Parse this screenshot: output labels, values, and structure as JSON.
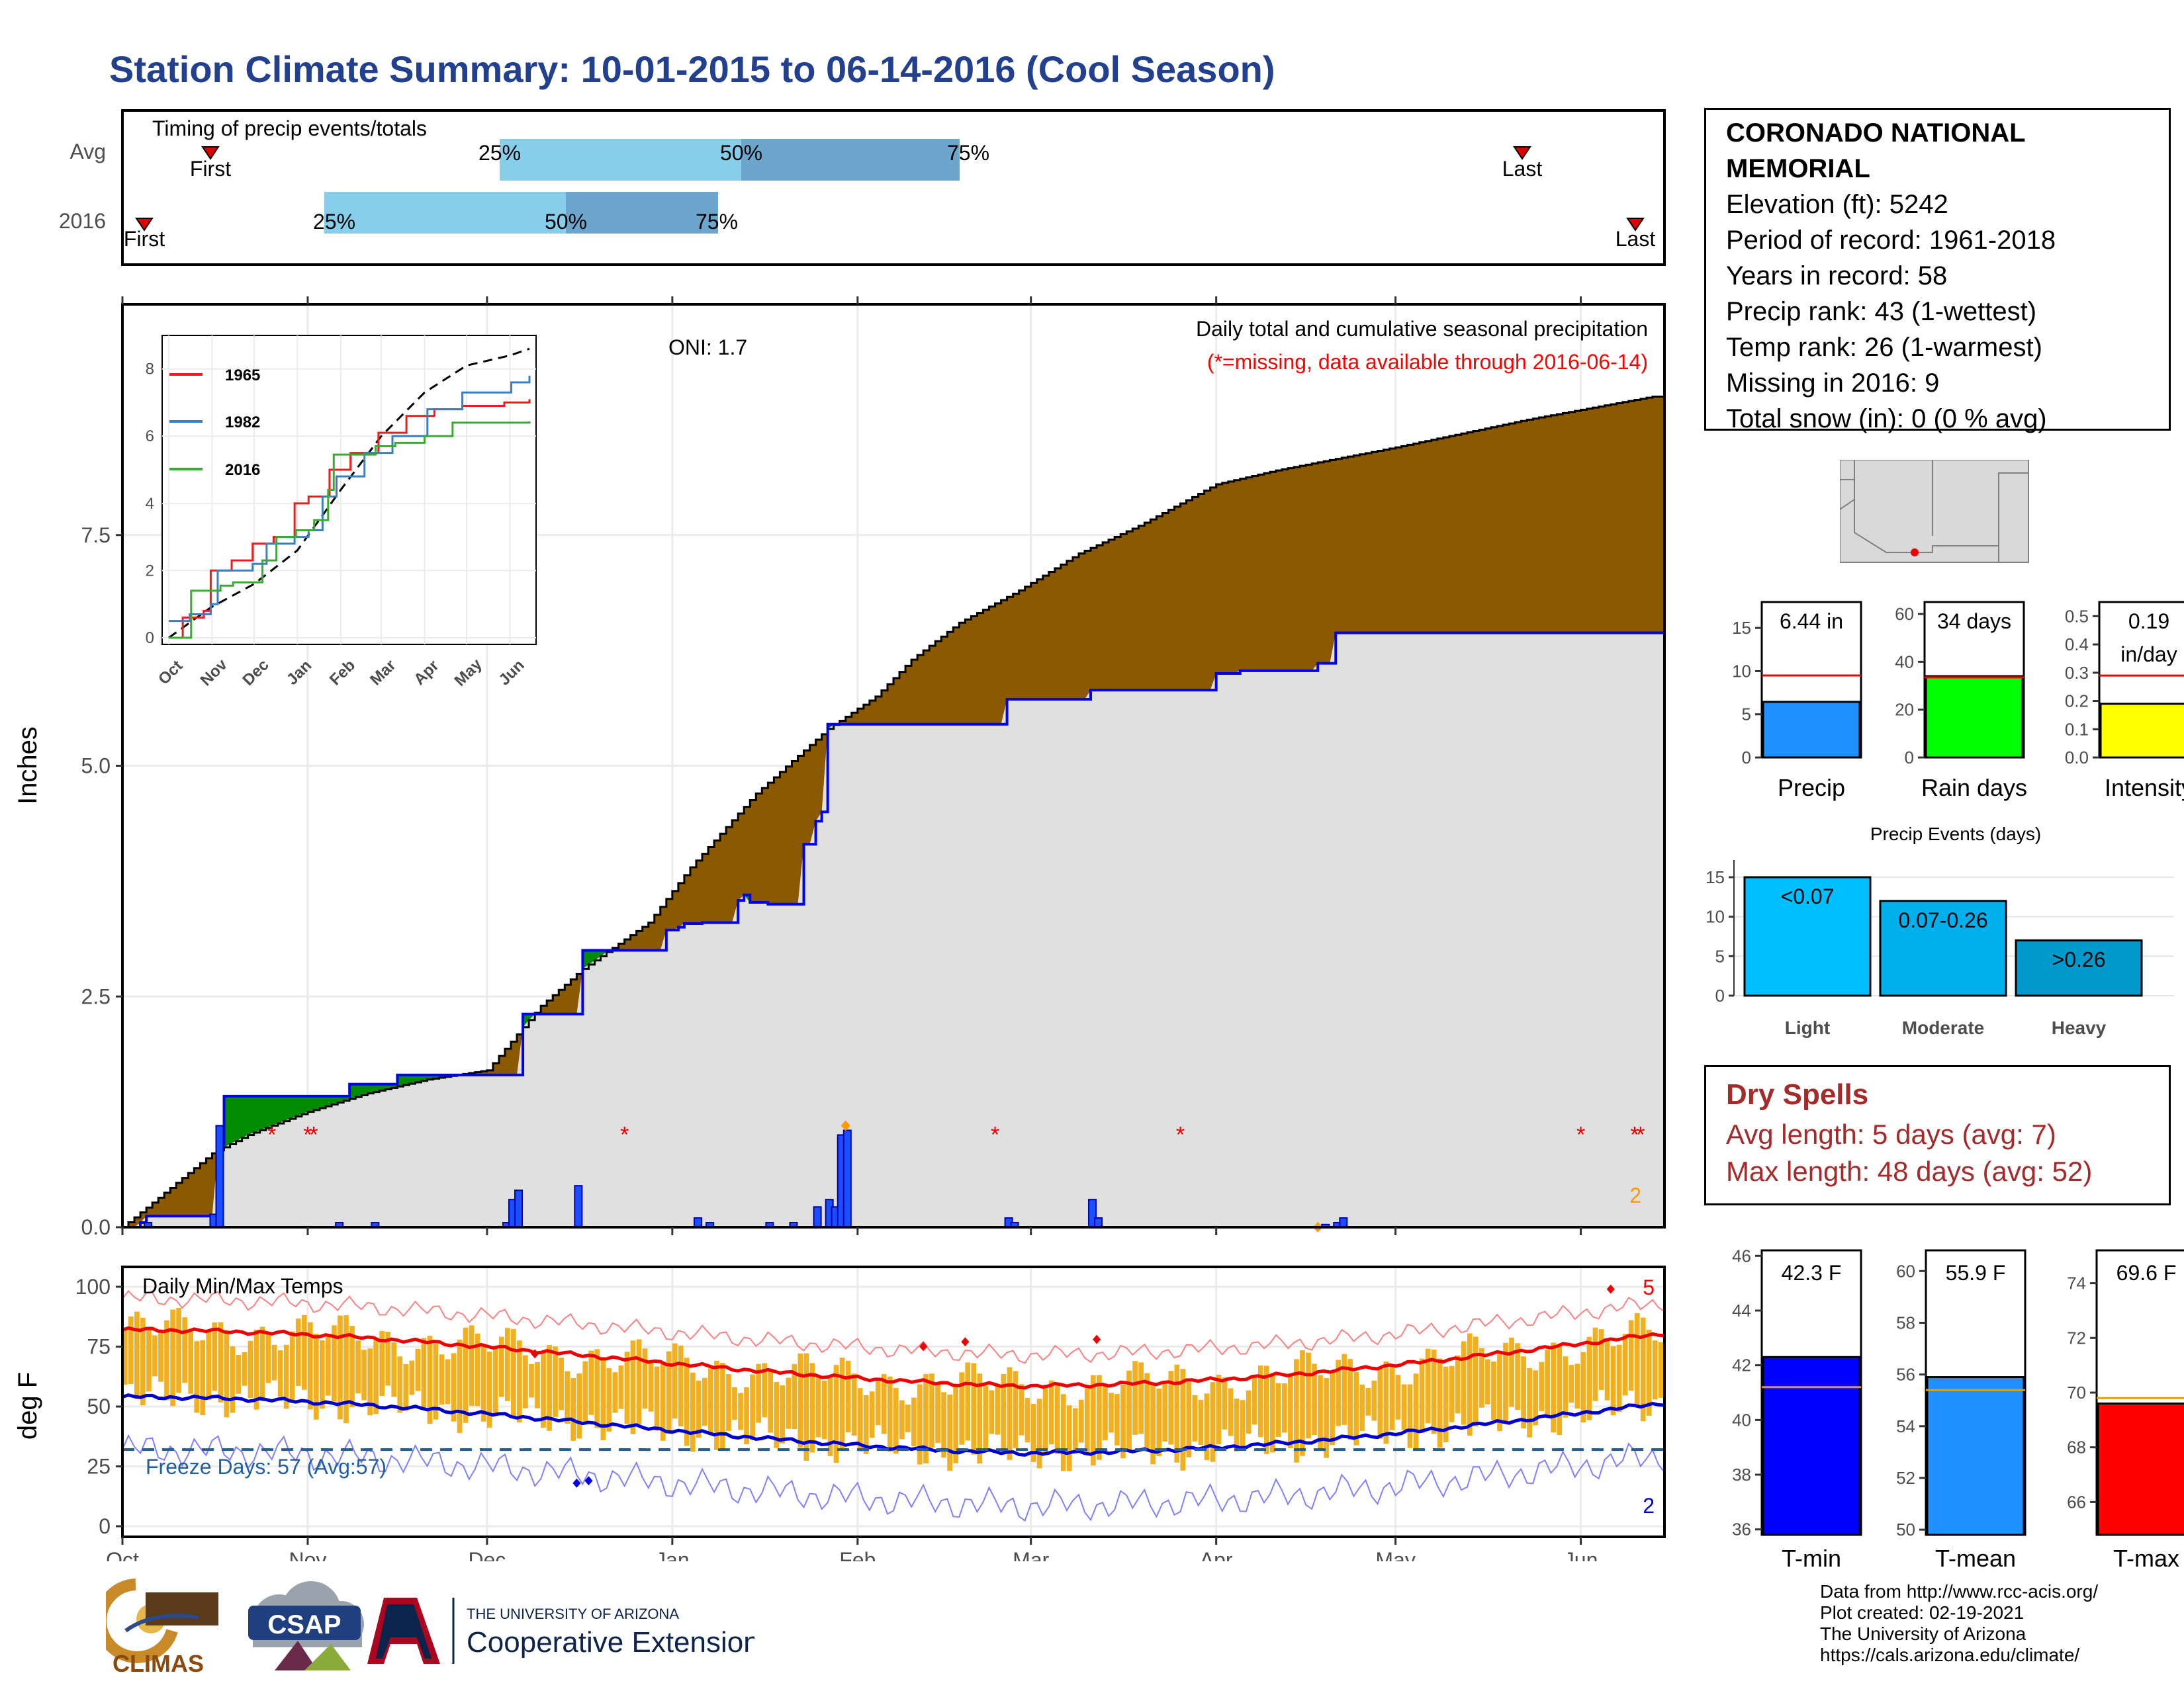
{
  "title": "Station Climate Summary: 10-01-2015 to 06-14-2016 (Cool Season)",
  "timing": {
    "label": "Timing of precip events/totals",
    "rows": [
      {
        "label": "Avg",
        "first_label": "First",
        "last_label": "Last",
        "first": "Nov 11",
        "p25": "Dec 30",
        "p50": "Jan 30",
        "p75": "Feb 28",
        "last": "May 31",
        "q25": "25%",
        "q50": "50%",
        "q75": "75%"
      },
      {
        "label": "2016",
        "first_label": "First",
        "last_label": "Last",
        "first": "Oct 4",
        "p25": "Nov 27",
        "p50": "Jan 4",
        "p75": "Jan 27",
        "last": "Jun 13",
        "q25": "25%",
        "q50": "50%",
        "q75": "75%"
      }
    ]
  },
  "station": {
    "name": "CORONADO NATIONAL MEMORIAL",
    "lines": [
      "Elevation (ft): 5242",
      "Period of record: 1961-2018",
      "Years in record: 58",
      "Precip rank: 43 (1-wettest)",
      "Temp rank: 26 (1-warmest)",
      "Missing in 2016: 9",
      "Total snow (in): 0 (0 % avg)"
    ]
  },
  "main": {
    "oni": "ONI: 1.7",
    "caption": "Daily total and cumulative seasonal precipitation",
    "missing_note": "(*=missing, data available through 2016-06-14)",
    "ylabel": "Inches",
    "yticks": [
      "0.0",
      "2.5",
      "5.0",
      "7.5"
    ],
    "count_label": "2"
  },
  "months": [
    "Oct",
    "Nov",
    "Dec",
    "Jan",
    "Feb",
    "Mar",
    "Apr",
    "May",
    "Jun"
  ],
  "inset": {
    "yticks": [
      "0",
      "2",
      "4",
      "6",
      "8"
    ],
    "months": [
      "Oct",
      "Nov",
      "Dec",
      "Jan",
      "Feb",
      "Mar",
      "Apr",
      "May",
      "Jun"
    ],
    "legend": [
      {
        "name": "1965",
        "color": "#ee1c1c"
      },
      {
        "name": "1982",
        "color": "#3a7fc1"
      },
      {
        "name": "2016",
        "color": "#3aaa35"
      }
    ]
  },
  "minis": [
    {
      "label": "Precip",
      "value": "6.44 in",
      "ticks": [
        "0",
        "5",
        "10",
        "15"
      ]
    },
    {
      "label": "Rain days",
      "value": "34 days",
      "ticks": [
        "0",
        "20",
        "40",
        "60"
      ]
    },
    {
      "label": "Intensity",
      "value1": "0.19",
      "value2": "in/day",
      "ticks": [
        "0.0",
        "0.1",
        "0.2",
        "0.3",
        "0.4",
        "0.5"
      ]
    }
  ],
  "events": {
    "title": "Precip Events (days)",
    "ticks": [
      "0",
      "5",
      "10",
      "15"
    ],
    "bars": [
      {
        "cat": "Light",
        "label": "<0.07",
        "value": 15,
        "color": "#00bfff"
      },
      {
        "cat": "Moderate",
        "label": "0.07-0.26",
        "value": 12,
        "color": "#00b0ec"
      },
      {
        "cat": "Heavy",
        "label": ">0.26",
        "value": 7,
        "color": "#009acd"
      }
    ]
  },
  "dry": {
    "title": "Dry Spells",
    "avg": "Avg length: 5 days (avg: 7)",
    "max": "Max length: 48 days (avg: 52)"
  },
  "temps": {
    "title": "Daily Min/Max Temps",
    "ylabel": "deg F",
    "yticks": [
      "0",
      "25",
      "50",
      "75",
      "100"
    ],
    "freeze": "Freeze Days: 57 (Avg:57)",
    "hi_count": "5",
    "lo_count": "2"
  },
  "tbars": [
    {
      "label": "T-min",
      "value": "42.3 F",
      "ticks": [
        "36",
        "38",
        "40",
        "42",
        "44",
        "46"
      ]
    },
    {
      "label": "T-mean",
      "value": "55.9 F",
      "ticks": [
        "50",
        "52",
        "54",
        "56",
        "58",
        "60"
      ]
    },
    {
      "label": "T-max",
      "value": "69.6 F",
      "ticks": [
        "66",
        "68",
        "70",
        "72",
        "74"
      ]
    }
  ],
  "logos": {
    "climas": "CLIMAS",
    "csap": "CSAP",
    "ua_top": "THE UNIVERSITY OF ARIZONA",
    "ua_bottom": "Cooperative Extension"
  },
  "credits": [
    "Data from http://www.rcc-acis.org/",
    "Plot created: 02-19-2021",
    "The University of Arizona",
    "https://cals.arizona.edu/climate/"
  ],
  "chart_data": [
    {
      "type": "bar",
      "title": "Timing of precip events/totals",
      "categories": [
        "Avg",
        "2016"
      ],
      "series": [
        {
          "name": "First",
          "values": [
            "Nov 11",
            "Oct 4"
          ]
        },
        {
          "name": "25%",
          "values": [
            "Dec 30",
            "Nov 27"
          ]
        },
        {
          "name": "50%",
          "values": [
            "Jan 30",
            "Jan 4"
          ]
        },
        {
          "name": "75%",
          "values": [
            "Feb 28",
            "Jan 27"
          ]
        },
        {
          "name": "Last",
          "values": [
            "May 31",
            "Jun 13"
          ]
        }
      ]
    },
    {
      "type": "area",
      "title": "Daily total and cumulative seasonal precipitation",
      "ylabel": "Inches",
      "ylim": [
        0,
        9.8
      ],
      "x": [
        "Oct 1",
        "Oct 16",
        "Oct 22",
        "Nov 1",
        "Nov 11",
        "Nov 20",
        "Dec 1",
        "Dec 10",
        "Dec 17",
        "Dec 28",
        "Jan 4",
        "Jan 15",
        "Jan 27",
        "Feb 10",
        "Feb 25",
        "Mar 1",
        "Mar 15",
        "Apr 1",
        "Apr 10",
        "Apr 15",
        "May 1",
        "Jun 13"
      ],
      "series": [
        {
          "name": "2016",
          "values": [
            0,
            0.12,
            1.42,
            1.42,
            1.55,
            1.65,
            1.65,
            2.31,
            3.0,
            3.22,
            3.6,
            5.45,
            5.45,
            5.72,
            5.82,
            5.82,
            6.03,
            6.06,
            6.08,
            6.44,
            6.44,
            6.44
          ]
        },
        {
          "name": "Avg",
          "values": [
            0,
            0.8,
            1.0,
            1.25,
            1.5,
            1.7,
            1.95,
            2.4,
            2.8,
            3.3,
            3.9,
            4.8,
            5.4,
            6.1,
            6.6,
            7.0,
            7.6,
            8.1,
            8.4,
            8.55,
            8.85,
            9.45
          ]
        },
        {
          "name": "Daily",
          "values": [
            0,
            1.1,
            0,
            0,
            0.1,
            0,
            0,
            0.4,
            0.45,
            0.05,
            1.05,
            0.15,
            0.2,
            0,
            0.3,
            0,
            0,
            0,
            0.1,
            0,
            0,
            0
          ]
        }
      ]
    },
    {
      "type": "line",
      "title": "Daily Min/Max Temps",
      "ylabel": "deg F",
      "ylim": [
        -5,
        108
      ],
      "x": [
        "Oct",
        "Nov",
        "Dec",
        "Jan",
        "Feb",
        "Mar",
        "Apr",
        "May",
        "Jun"
      ],
      "series": [
        {
          "name": "Avg max",
          "values": [
            82,
            73,
            64,
            61,
            62,
            66,
            74,
            83,
            91
          ]
        },
        {
          "name": "Avg min",
          "values": [
            54,
            45,
            37,
            35,
            36,
            38,
            43,
            51,
            57
          ]
        },
        {
          "name": "Record max",
          "values": [
            95,
            88,
            80,
            79,
            82,
            86,
            94,
            101,
            106
          ]
        },
        {
          "name": "Record min",
          "values": [
            38,
            25,
            10,
            8,
            10,
            14,
            23,
            32,
            44
          ]
        }
      ]
    },
    {
      "type": "bar",
      "categories": [
        "Precip",
        "Rain days",
        "Intensity"
      ],
      "series": [
        {
          "name": "2016",
          "values": [
            6.44,
            34,
            0.19
          ]
        },
        {
          "name": "Avg",
          "values": [
            9.5,
            34,
            0.28
          ]
        }
      ]
    },
    {
      "type": "bar",
      "title": "Precip Events (days)",
      "categories": [
        "Light",
        "Moderate",
        "Heavy"
      ],
      "values": [
        15,
        12,
        7
      ]
    },
    {
      "type": "bar",
      "categories": [
        "T-min",
        "T-mean",
        "T-max"
      ],
      "series": [
        {
          "name": "2016",
          "values": [
            42.3,
            55.9,
            69.6
          ]
        },
        {
          "name": "Avg",
          "values": [
            41.2,
            55.4,
            69.8
          ]
        }
      ]
    }
  ]
}
